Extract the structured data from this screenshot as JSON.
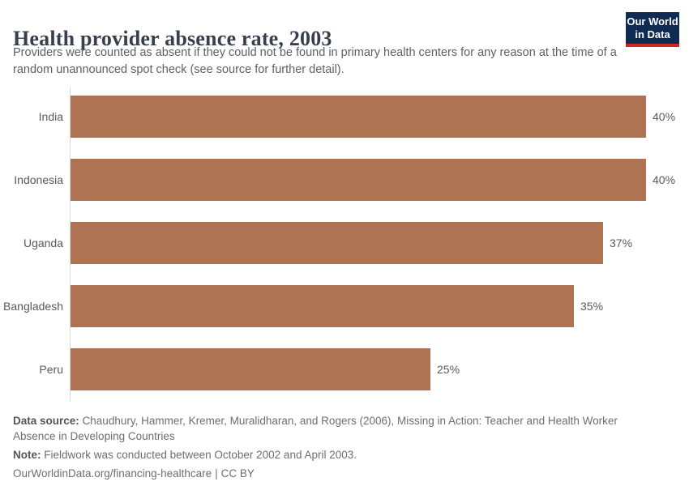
{
  "header": {
    "title": "Health provider absence rate, 2003",
    "subtitle": "Providers were counted as absent if they could not be found in primary health centers for any reason at the time of a random unannounced spot check (see source for further detail).",
    "logo": {
      "line1": "Our World",
      "line2": "in Data",
      "bg_color": "#0f2b52",
      "accent_color": "#cc2a20"
    }
  },
  "chart_data": {
    "type": "bar",
    "orientation": "horizontal",
    "title": "Health provider absence rate, 2003",
    "categories": [
      "India",
      "Indonesia",
      "Uganda",
      "Bangladesh",
      "Peru"
    ],
    "values": [
      40,
      40,
      37,
      35,
      25
    ],
    "unit": "%",
    "xlim": [
      0,
      40
    ],
    "grid": false,
    "legend": "none",
    "bar_color": "#ad7352",
    "rows": [
      {
        "label": "India",
        "value": 40,
        "display": "40%"
      },
      {
        "label": "Indonesia",
        "value": 40,
        "display": "40%"
      },
      {
        "label": "Uganda",
        "value": 37,
        "display": "37%"
      },
      {
        "label": "Bangladesh",
        "value": 35,
        "display": "35%"
      },
      {
        "label": "Peru",
        "value": 25,
        "display": "25%"
      }
    ]
  },
  "footer": {
    "data_source_label": "Data source:",
    "data_source_text": "Chaudhury, Hammer, Kremer, Muralidharan, and Rogers (2006), Missing in Action: Teacher and Health Worker Absence in Developing Countries",
    "note_label": "Note:",
    "note_text": "Fieldwork was conducted between October 2002 and April 2003.",
    "url": "OurWorldinData.org/financing-healthcare",
    "separator": "|",
    "license": "CC BY"
  }
}
